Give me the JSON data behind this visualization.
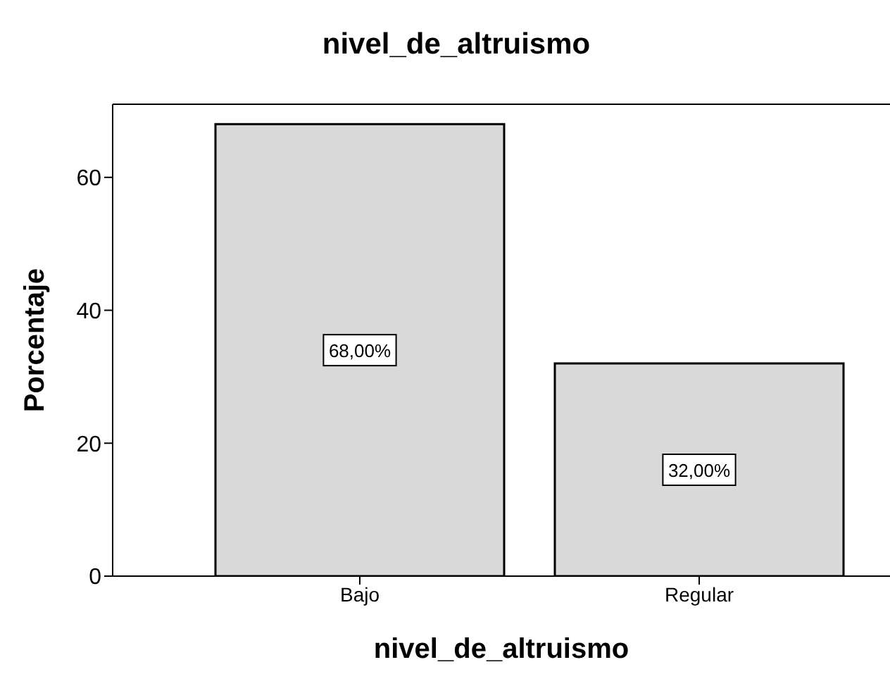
{
  "chart_data": {
    "type": "bar",
    "title": "nivel_de_altruismo",
    "xlabel": "nivel_de_altruismo",
    "ylabel": "Porcentaje",
    "categories": [
      "Bajo",
      "Regular"
    ],
    "values": [
      68,
      32
    ],
    "value_labels": [
      "68,00%",
      "32,00%"
    ],
    "color": "#d9d9d9",
    "ylim": [
      0,
      71
    ],
    "yticks": [
      0,
      20,
      40,
      60
    ]
  }
}
